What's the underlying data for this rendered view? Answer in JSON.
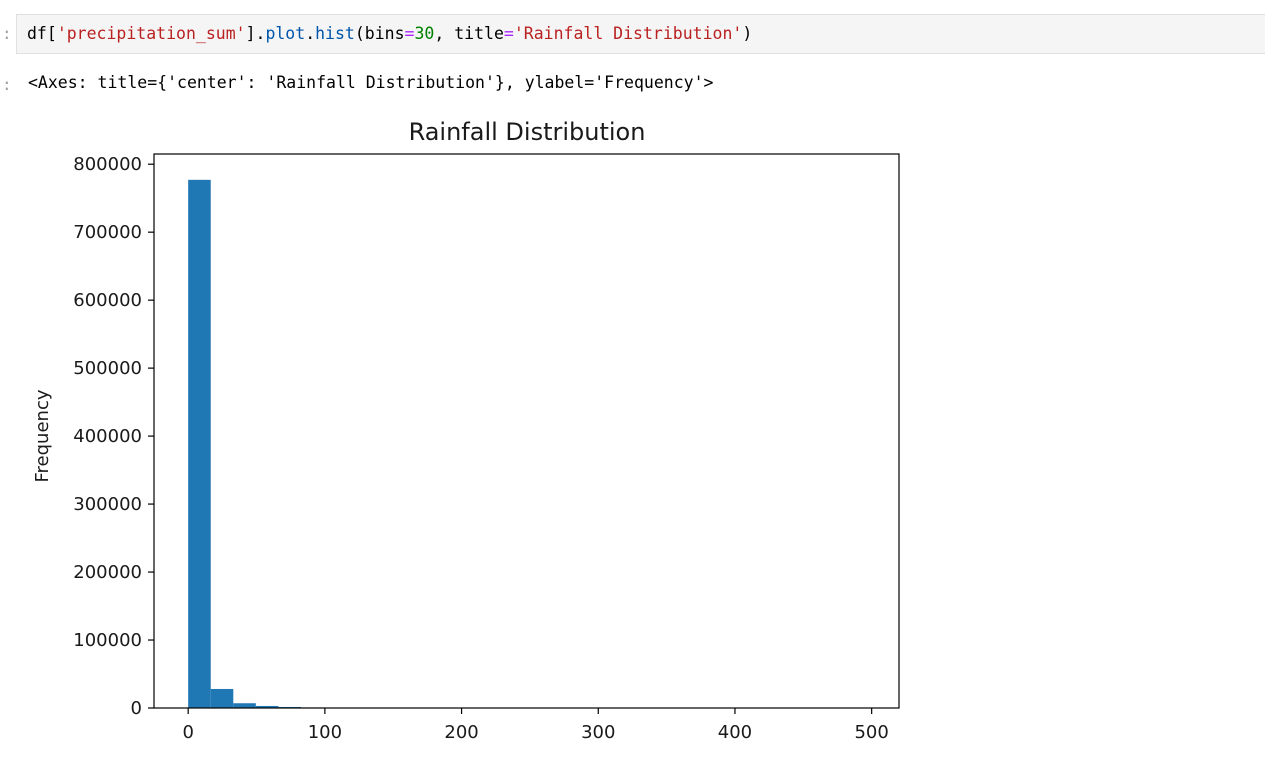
{
  "cells": {
    "in_prompt": ":",
    "out_prompt": ":",
    "code": {
      "t1": "df[",
      "t2": "'precipitation_sum'",
      "t3": "].",
      "t4": "plot",
      "t5": ".",
      "t6": "hist",
      "t7": "(bins",
      "t8": "=",
      "t9": "30",
      "t10": ", title",
      "t11": "=",
      "t12": "'Rainfall Distribution'",
      "t13": ")"
    },
    "output_text": "<Axes: title={'center': 'Rainfall Distribution'}, ylabel='Frequency'>"
  },
  "chart_data": {
    "type": "bar",
    "title": "Rainfall Distribution",
    "xlabel": "",
    "ylabel": "Frequency",
    "bar_color": "#1f77b4",
    "xlim": [
      -25,
      520
    ],
    "ylim": [
      0,
      815000
    ],
    "xticks": [
      0,
      100,
      200,
      300,
      400,
      500
    ],
    "yticks": [
      0,
      100000,
      200000,
      300000,
      400000,
      500000,
      600000,
      700000,
      800000
    ],
    "bin_width": 16.5,
    "bins_start": 0,
    "values": [
      777000,
      28000,
      7000,
      3000,
      1500,
      800,
      400,
      200,
      120,
      80,
      50,
      30,
      20,
      12,
      8,
      5,
      4,
      3,
      2,
      2,
      1,
      1,
      1,
      1,
      0,
      0,
      0,
      0,
      0,
      1
    ]
  }
}
